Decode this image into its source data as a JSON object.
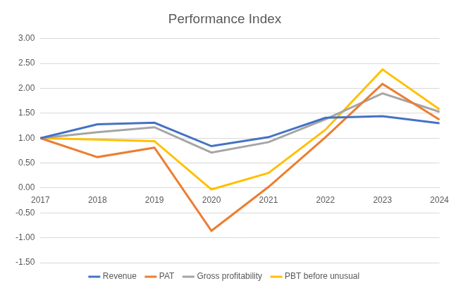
{
  "chart_data": {
    "type": "line",
    "title": "Performance Index",
    "categories": [
      "2017",
      "2018",
      "2019",
      "2020",
      "2021",
      "2022",
      "2023",
      "2024"
    ],
    "series": [
      {
        "name": "Revenue",
        "color": "#4472c4",
        "values": [
          1.0,
          1.28,
          1.31,
          0.84,
          1.02,
          1.41,
          1.44,
          1.3
        ]
      },
      {
        "name": "PAT",
        "color": "#ed7d31",
        "values": [
          1.0,
          0.62,
          0.81,
          -0.86,
          0.02,
          1.02,
          2.09,
          1.37
        ]
      },
      {
        "name": "Gross profitability",
        "color": "#a5a5a5",
        "values": [
          1.0,
          1.12,
          1.22,
          0.71,
          0.92,
          1.38,
          1.9,
          1.53
        ]
      },
      {
        "name": "PBT before unusual",
        "color": "#ffc000",
        "values": [
          1.0,
          0.97,
          0.94,
          -0.03,
          0.3,
          1.17,
          2.38,
          1.58
        ]
      }
    ],
    "ylim": [
      -1.5,
      3.0
    ],
    "yticks": [
      {
        "value": -1.5,
        "label": "-1.50"
      },
      {
        "value": -1.0,
        "label": "-1.00"
      },
      {
        "value": -0.5,
        "label": "-0.50"
      },
      {
        "value": 0,
        "label": "0.00"
      },
      {
        "value": 0.5,
        "label": "0.50"
      },
      {
        "value": 1.0,
        "label": "1.00"
      },
      {
        "value": 1.5,
        "label": "1.50"
      },
      {
        "value": 2.0,
        "label": "2.00"
      },
      {
        "value": 2.5,
        "label": "2.50"
      },
      {
        "value": 3.0,
        "label": "3.00"
      }
    ],
    "grid": true,
    "legend": "bottom",
    "marker": "none",
    "line_style": "solid"
  }
}
